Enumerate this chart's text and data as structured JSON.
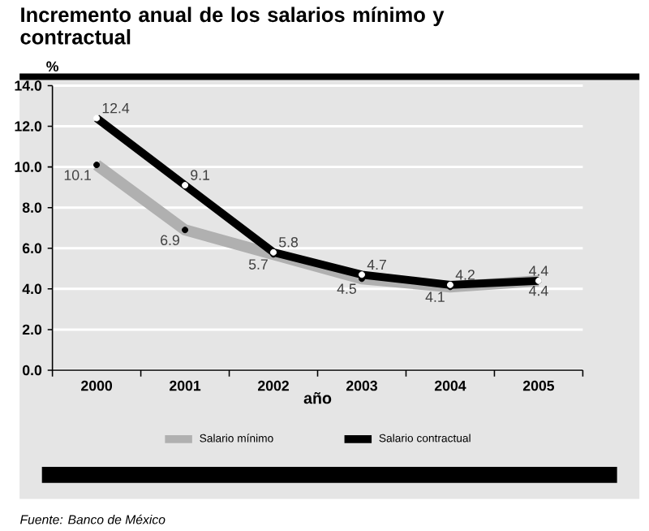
{
  "chart_data": {
    "type": "line",
    "title": "Incremento anual de los salarios mínimo y contractual",
    "xlabel": "año",
    "ylabel": "%",
    "categories": [
      "2000",
      "2001",
      "2002",
      "2003",
      "2004",
      "2005"
    ],
    "series": [
      {
        "name": "Salario mínimo",
        "color": "#b0b0b0",
        "values": [
          10.1,
          6.9,
          5.7,
          4.5,
          4.1,
          4.4
        ]
      },
      {
        "name": "Salario contractual",
        "color": "#000000",
        "values": [
          12.4,
          9.1,
          5.8,
          4.7,
          4.2,
          4.4
        ]
      }
    ],
    "ylim": [
      0,
      14
    ],
    "yticks": [
      {
        "value": 0,
        "label": "0.0"
      },
      {
        "value": 2,
        "label": "2.0"
      },
      {
        "value": 4,
        "label": "4.0"
      },
      {
        "value": 6,
        "label": "6.0"
      },
      {
        "value": 8,
        "label": "8.0"
      },
      {
        "value": 10,
        "label": "10.0"
      },
      {
        "value": 12,
        "label": "12.0"
      },
      {
        "value": 14,
        "label": "14.0"
      }
    ],
    "grid": "y",
    "legend": "bottom",
    "marker": "circle",
    "data_labels": true,
    "annotations": [
      "Fuente: Banco de México"
    ]
  }
}
